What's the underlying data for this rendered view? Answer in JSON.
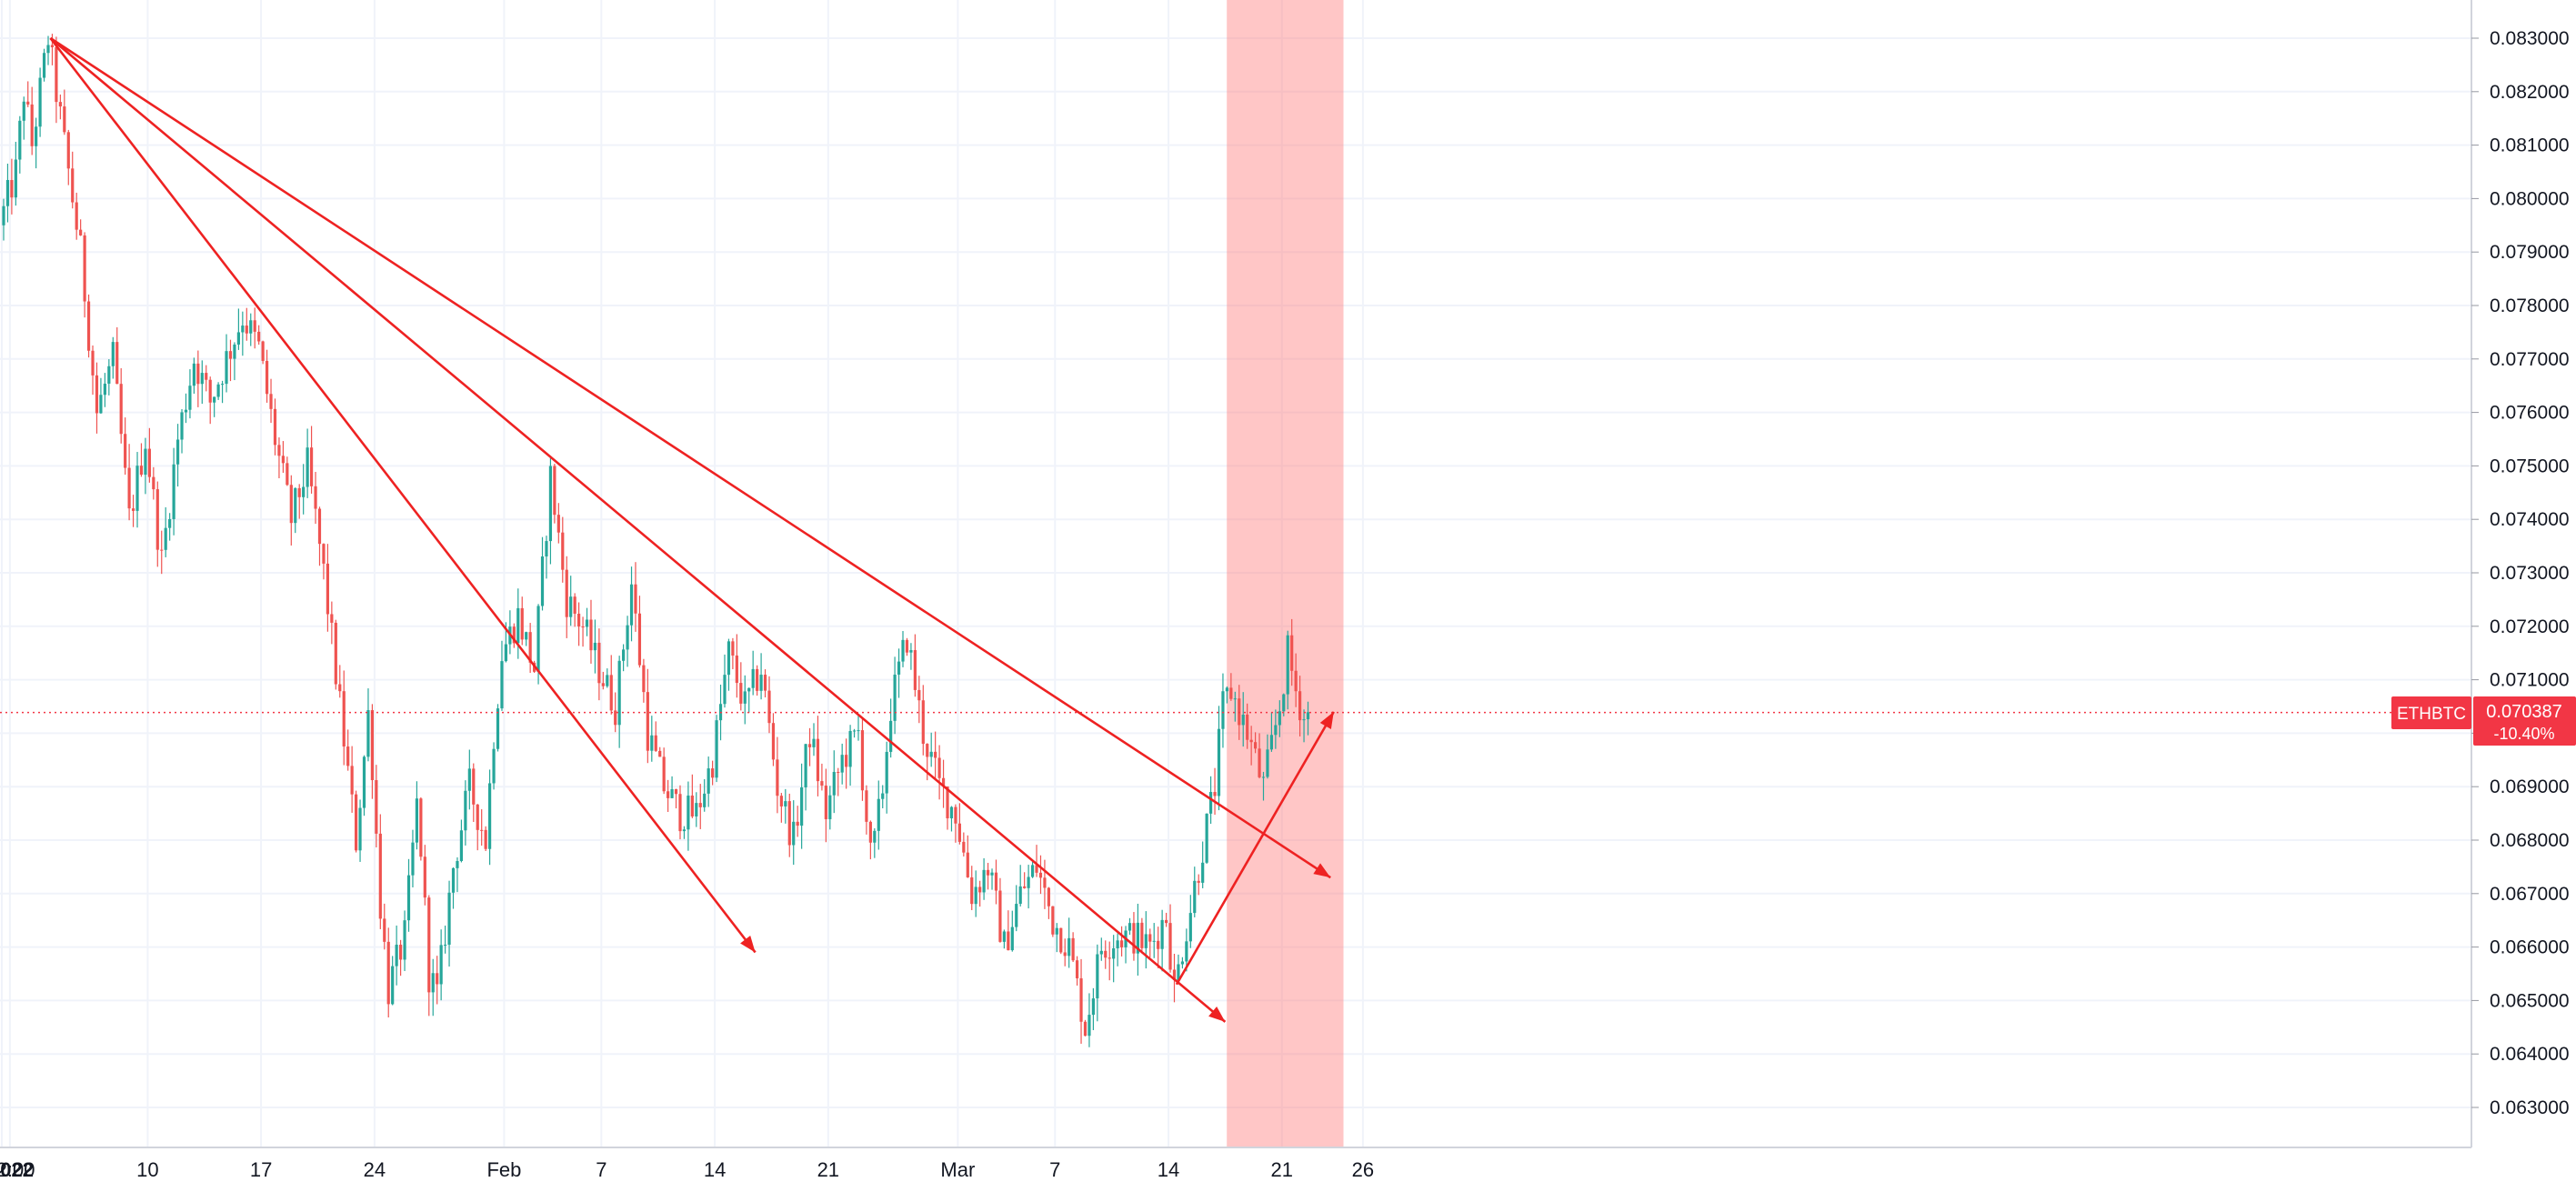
{
  "chart_data": {
    "type": "candlestick",
    "symbol": "ETHBTC",
    "last_price": "0.070387",
    "change_pct": "-10.40%",
    "ylim": [
      0.0625,
      0.0835
    ],
    "y_ticks": [
      "0.063000",
      "0.064000",
      "0.065000",
      "0.066000",
      "0.067000",
      "0.068000",
      "0.069000",
      "0.070000",
      "0.071000",
      "0.072000",
      "0.073000",
      "0.074000",
      "0.075000",
      "0.076000",
      "0.077000",
      "0.078000",
      "0.079000",
      "0.080000",
      "0.081000",
      "0.082000",
      "0.083000"
    ],
    "x_ticks": [
      {
        "label": "2022",
        "day": 0
      },
      {
        "label": "12:00",
        "day": 0.5
      },
      {
        "label": "10",
        "day": 9
      },
      {
        "label": "17",
        "day": 16
      },
      {
        "label": "24",
        "day": 23
      },
      {
        "label": "Feb",
        "day": 31
      },
      {
        "label": "7",
        "day": 37
      },
      {
        "label": "14",
        "day": 44
      },
      {
        "label": "21",
        "day": 51
      },
      {
        "label": "Mar",
        "day": 59
      },
      {
        "label": "7",
        "day": 65
      },
      {
        "label": "14",
        "day": 72
      },
      {
        "label": "21",
        "day": 79
      },
      {
        "label": "26",
        "day": 84
      }
    ],
    "grid": true,
    "price_path": [
      [
        0,
        0.0795
      ],
      [
        1,
        0.0805
      ],
      [
        1.5,
        0.082
      ],
      [
        2,
        0.081
      ],
      [
        3,
        0.083
      ],
      [
        4,
        0.081
      ],
      [
        5,
        0.079
      ],
      [
        6,
        0.076
      ],
      [
        7,
        0.077
      ],
      [
        8,
        0.074
      ],
      [
        9,
        0.0755
      ],
      [
        10,
        0.0732
      ],
      [
        11,
        0.0755
      ],
      [
        12,
        0.077
      ],
      [
        13,
        0.0762
      ],
      [
        14,
        0.077
      ],
      [
        15,
        0.0778
      ],
      [
        16,
        0.0772
      ],
      [
        17,
        0.0755
      ],
      [
        18,
        0.074
      ],
      [
        19,
        0.075
      ],
      [
        20,
        0.073
      ],
      [
        21,
        0.0705
      ],
      [
        22,
        0.068
      ],
      [
        22.8,
        0.0705
      ],
      [
        23.5,
        0.0668
      ],
      [
        24,
        0.0652
      ],
      [
        25,
        0.0662
      ],
      [
        25.8,
        0.0688
      ],
      [
        26.5,
        0.0655
      ],
      [
        27,
        0.0651
      ],
      [
        28,
        0.0675
      ],
      [
        29,
        0.069
      ],
      [
        30,
        0.068
      ],
      [
        30.5,
        0.07
      ],
      [
        31,
        0.0715
      ],
      [
        32,
        0.0722
      ],
      [
        33,
        0.0712
      ],
      [
        34,
        0.0748
      ],
      [
        35,
        0.0725
      ],
      [
        36,
        0.072
      ],
      [
        37,
        0.0712
      ],
      [
        38,
        0.0705
      ],
      [
        39,
        0.0728
      ],
      [
        40,
        0.07
      ],
      [
        41,
        0.069
      ],
      [
        42,
        0.0685
      ],
      [
        43,
        0.0685
      ],
      [
        44,
        0.0695
      ],
      [
        45,
        0.0715
      ],
      [
        46,
        0.0705
      ],
      [
        47,
        0.0712
      ],
      [
        48,
        0.069
      ],
      [
        49,
        0.068
      ],
      [
        50,
        0.07
      ],
      [
        51,
        0.0685
      ],
      [
        52,
        0.0695
      ],
      [
        53,
        0.07
      ],
      [
        53.8,
        0.0675
      ],
      [
        54.5,
        0.069
      ],
      [
        55,
        0.0705
      ],
      [
        56,
        0.0718
      ],
      [
        57,
        0.07
      ],
      [
        58,
        0.069
      ],
      [
        59,
        0.0685
      ],
      [
        60,
        0.067
      ],
      [
        61,
        0.0675
      ],
      [
        62,
        0.066
      ],
      [
        63,
        0.067
      ],
      [
        64,
        0.0675
      ],
      [
        65,
        0.0665
      ],
      [
        66,
        0.066
      ],
      [
        67,
        0.0645
      ],
      [
        68,
        0.066
      ],
      [
        69,
        0.0662
      ],
      [
        70,
        0.0662
      ],
      [
        71,
        0.066
      ],
      [
        72,
        0.0666
      ],
      [
        72.5,
        0.0652
      ],
      [
        73,
        0.066
      ],
      [
        74,
        0.0675
      ],
      [
        75,
        0.069
      ],
      [
        75.5,
        0.0705
      ],
      [
        76,
        0.0708
      ],
      [
        77,
        0.07
      ],
      [
        78,
        0.069
      ],
      [
        79,
        0.0705
      ],
      [
        79.5,
        0.0715
      ],
      [
        80,
        0.0708
      ],
      [
        80.5,
        0.0703
      ]
    ],
    "trendlines": [
      {
        "from": [
          3,
          0.083
        ],
        "to": [
          46.5,
          0.0659
        ]
      },
      {
        "from": [
          3,
          0.083
        ],
        "to": [
          75.5,
          0.0646
        ]
      },
      {
        "from": [
          3,
          0.083
        ],
        "to": [
          82,
          0.0673
        ]
      },
      {
        "from": [
          72.5,
          0.0653
        ],
        "to": [
          82.2,
          0.0704
        ]
      }
    ],
    "highlight_range": {
      "from": 75.6,
      "to": 82.8
    },
    "colors": {
      "up": "#26a69a",
      "down": "#ef5350",
      "annotation": "#ee2222",
      "highlight": "rgba(255,120,120,0.42)",
      "grid": "#f0f3fa",
      "axis_text": "#131722",
      "price_tag": "#f23645"
    }
  }
}
